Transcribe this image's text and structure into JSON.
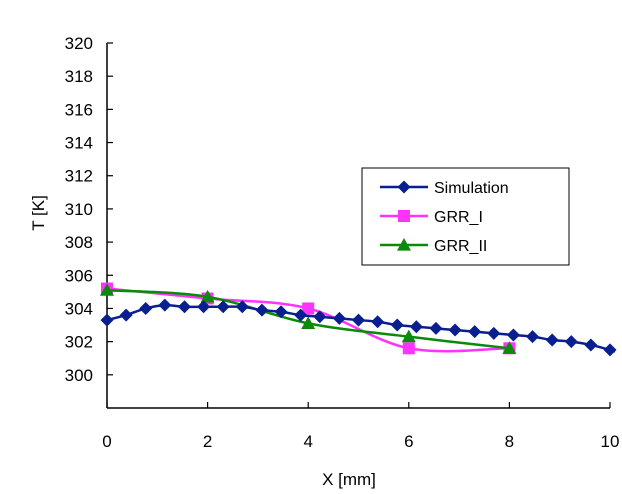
{
  "chart_data": {
    "type": "line",
    "xlabel": "X [mm]",
    "ylabel": "T [K]",
    "xlim": [
      0,
      10
    ],
    "ylim": [
      298,
      320
    ],
    "xticks": [
      0,
      2,
      4,
      6,
      8,
      10
    ],
    "yticks": [
      300,
      302,
      304,
      306,
      308,
      310,
      312,
      314,
      316,
      318,
      320
    ],
    "grid": false,
    "legend_position": "right",
    "series": [
      {
        "name": "Simulation",
        "color": "#0a1f8f",
        "marker": "diamond",
        "x": [
          0,
          0.38,
          0.77,
          1.15,
          1.54,
          1.92,
          2.31,
          2.69,
          3.08,
          3.46,
          3.85,
          4.23,
          4.62,
          5.0,
          5.38,
          5.77,
          6.15,
          6.54,
          6.92,
          7.31,
          7.69,
          8.08,
          8.46,
          8.85,
          9.23,
          9.62,
          10.0
        ],
        "y": [
          303.3,
          303.6,
          304.0,
          304.2,
          304.1,
          304.1,
          304.1,
          304.1,
          303.9,
          303.8,
          303.6,
          303.5,
          303.4,
          303.3,
          303.2,
          303.0,
          302.9,
          302.8,
          302.7,
          302.6,
          302.5,
          302.4,
          302.3,
          302.1,
          302.0,
          301.8,
          301.5
        ],
        "end_x": 10.1,
        "end_y": 301.4
      },
      {
        "name": "GRR_I",
        "color": "#ff33ff",
        "marker": "square",
        "x": [
          0,
          2,
          4,
          6,
          8
        ],
        "y": [
          305.2,
          304.6,
          304.0,
          301.6,
          301.6
        ]
      },
      {
        "name": "GRR_II",
        "color": "#0a8a0a",
        "marker": "triangle",
        "x": [
          0,
          2,
          4,
          6,
          8
        ],
        "y": [
          305.1,
          304.7,
          303.1,
          302.3,
          301.6
        ]
      }
    ]
  }
}
